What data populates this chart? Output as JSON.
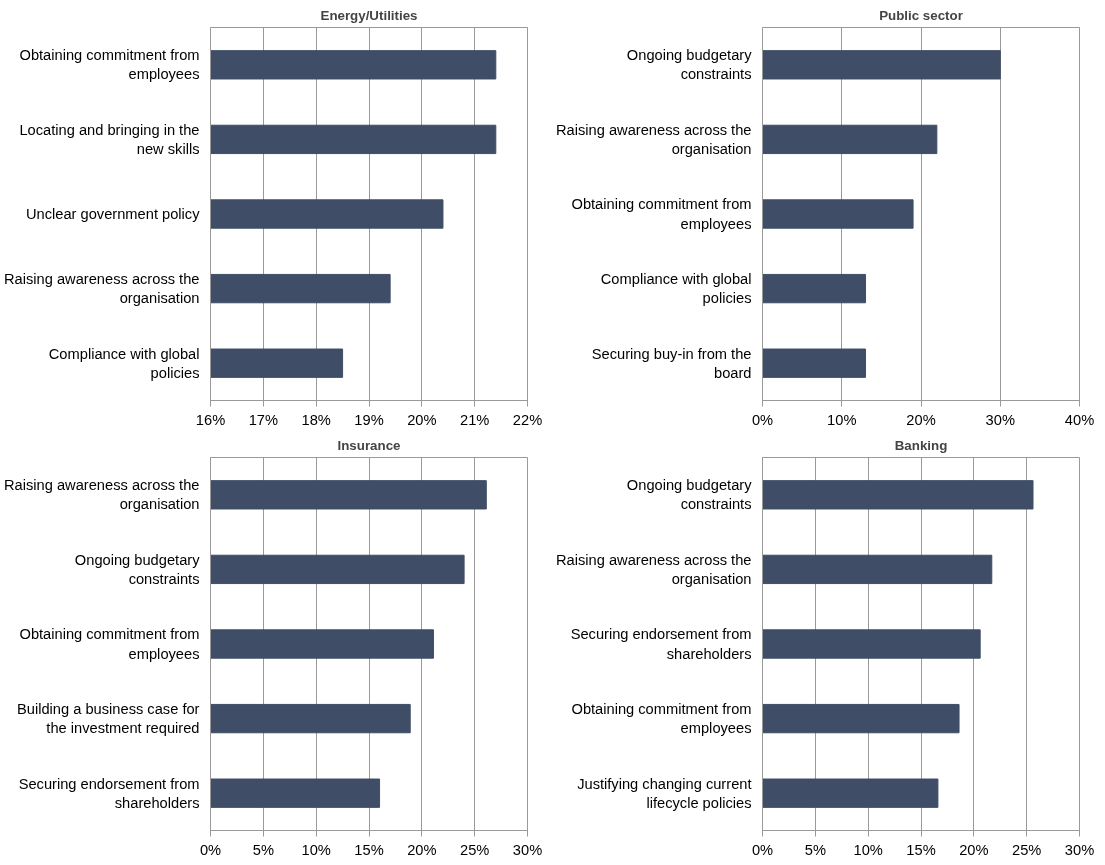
{
  "chart_data": [
    {
      "type": "bar",
      "orientation": "horizontal",
      "title": "Energy/Utilities",
      "categories": [
        "Obtaining commitment from employees",
        "Locating and bringing in the new skills",
        "Unclear government policy",
        "Raising awareness across the organisation",
        "Compliance with global policies"
      ],
      "values": [
        21.4,
        21.4,
        20.4,
        19.4,
        18.5
      ],
      "color": "#3f4e66",
      "xlim": [
        16,
        22
      ],
      "xticks": [
        {
          "value": 16,
          "label": "16%"
        },
        {
          "value": 17,
          "label": "17%"
        },
        {
          "value": 18,
          "label": "18%"
        },
        {
          "value": 19,
          "label": "19%"
        },
        {
          "value": 20,
          "label": "20%"
        },
        {
          "value": 21,
          "label": "21%"
        },
        {
          "value": 22,
          "label": "22%"
        }
      ],
      "grid": "x"
    },
    {
      "type": "bar",
      "orientation": "horizontal",
      "title": "Public sector",
      "categories": [
        "Ongoing budgetary constraints",
        "Raising awareness across the organisation",
        "Obtaining commitment from employees",
        "Compliance with global policies",
        "Securing buy-in from the board"
      ],
      "values": [
        30,
        22,
        19,
        13,
        13
      ],
      "color": "#3f4e66",
      "xlim": [
        0,
        40
      ],
      "xticks": [
        {
          "value": 0,
          "label": "0%"
        },
        {
          "value": 10,
          "label": "10%"
        },
        {
          "value": 20,
          "label": "20%"
        },
        {
          "value": 30,
          "label": "30%"
        },
        {
          "value": 40,
          "label": "40%"
        }
      ],
      "grid": "x"
    },
    {
      "type": "bar",
      "orientation": "horizontal",
      "title": "Insurance",
      "categories": [
        "Raising awareness across the organisation",
        "Ongoing budgetary constraints",
        "Obtaining commitment from employees",
        "Building a business case for the investment required",
        "Securing endorsement from shareholders"
      ],
      "values": [
        26.1,
        24.0,
        21.1,
        18.9,
        16.0
      ],
      "color": "#3f4e66",
      "xlim": [
        0,
        30
      ],
      "xticks": [
        {
          "value": 0,
          "label": "0%"
        },
        {
          "value": 5,
          "label": "5%"
        },
        {
          "value": 10,
          "label": "10%"
        },
        {
          "value": 15,
          "label": "15%"
        },
        {
          "value": 20,
          "label": "20%"
        },
        {
          "value": 25,
          "label": "25%"
        },
        {
          "value": 30,
          "label": "30%"
        }
      ],
      "grid": "x"
    },
    {
      "type": "bar",
      "orientation": "horizontal",
      "title": "Banking",
      "categories": [
        "Ongoing budgetary constraints",
        "Raising awareness across the organisation",
        "Securing endorsement from shareholders",
        "Obtaining commitment from employees",
        "Justifying changing current lifecycle policies"
      ],
      "values": [
        25.6,
        21.7,
        20.6,
        18.6,
        16.6
      ],
      "color": "#3f4e66",
      "xlim": [
        0,
        30
      ],
      "xticks": [
        {
          "value": 0,
          "label": "0%"
        },
        {
          "value": 5,
          "label": "5%"
        },
        {
          "value": 10,
          "label": "10%"
        },
        {
          "value": 15,
          "label": "15%"
        },
        {
          "value": 20,
          "label": "20%"
        },
        {
          "value": 25,
          "label": "25%"
        },
        {
          "value": 30,
          "label": "30%"
        }
      ],
      "grid": "x"
    }
  ]
}
